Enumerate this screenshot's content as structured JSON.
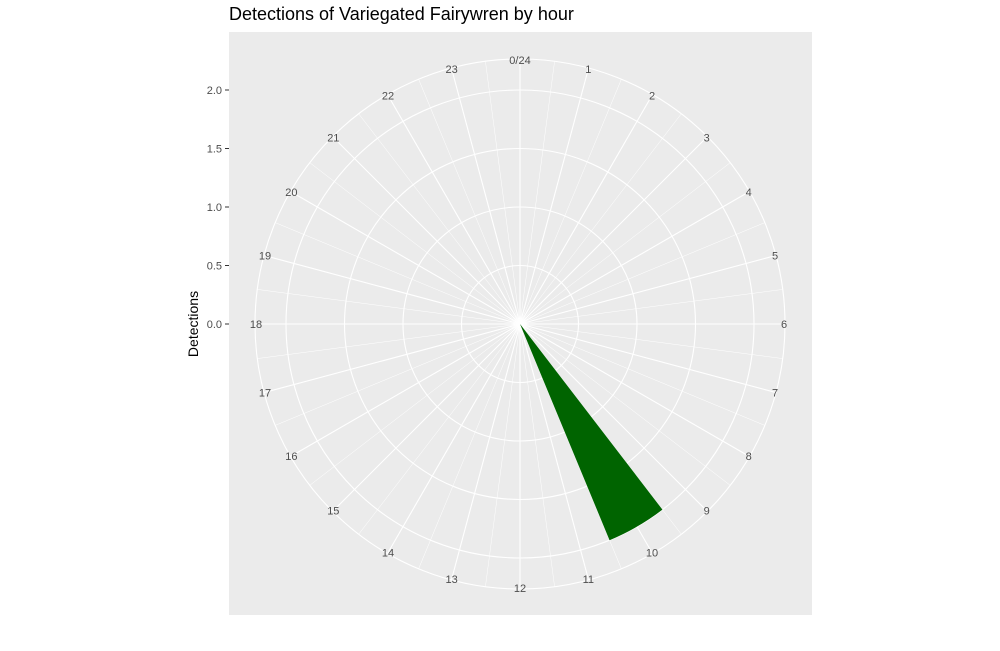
{
  "chart_data": {
    "type": "bar",
    "coord": "polar",
    "title": "Detections of Variegated Fairywren by hour",
    "xlabel": "",
    "ylabel": "Detections",
    "categories": [
      "0/24",
      "1",
      "2",
      "3",
      "4",
      "5",
      "6",
      "7",
      "8",
      "9",
      "10",
      "11",
      "12",
      "13",
      "14",
      "15",
      "16",
      "17",
      "18",
      "19",
      "20",
      "21",
      "22",
      "23"
    ],
    "values": [
      0,
      0,
      0,
      0,
      0,
      0,
      0,
      0,
      0,
      0,
      2,
      0,
      0,
      0,
      0,
      0,
      0,
      0,
      0,
      0,
      0,
      0,
      0,
      0
    ],
    "ylim": [
      0,
      2
    ],
    "y_ticks": [
      "0.0",
      "0.5",
      "1.0",
      "1.5",
      "2.0"
    ],
    "grid": true,
    "colors": {
      "bar": "#006400",
      "panel": "#ebebeb",
      "grid": "#ffffff"
    }
  }
}
